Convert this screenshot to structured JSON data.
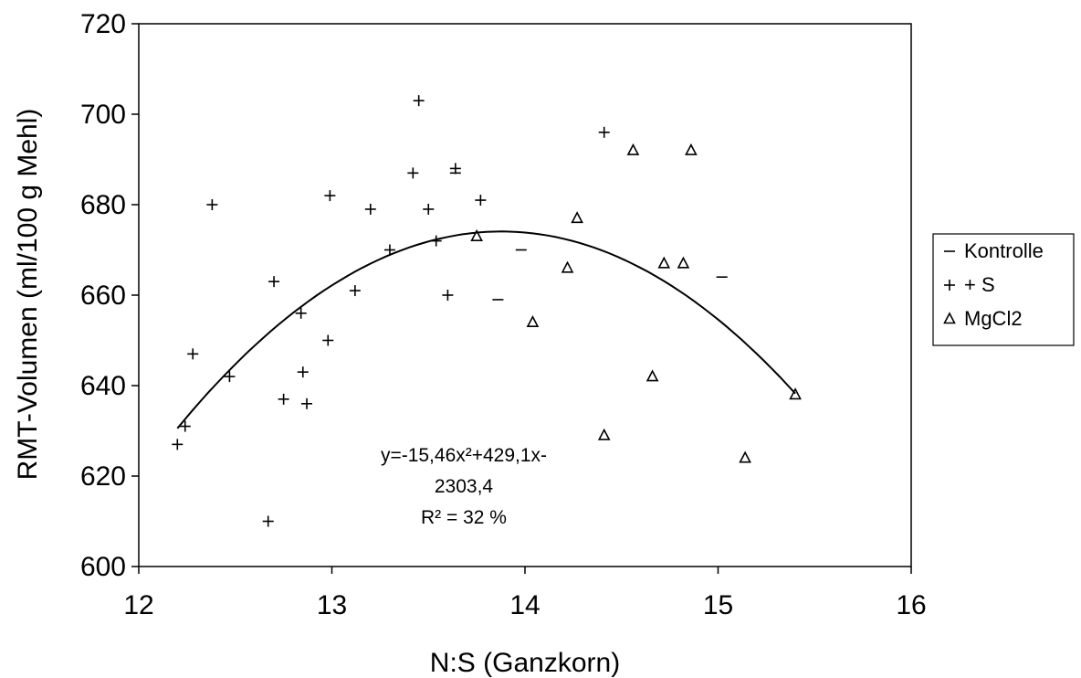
{
  "chart_data": {
    "type": "scatter",
    "title": "",
    "xlabel": "N:S (Ganzkorn)",
    "ylabel": "RMT-Volumen (ml/100 g Mehl)",
    "xlim": [
      12,
      16
    ],
    "ylim": [
      600,
      720
    ],
    "x_ticks": [
      "12",
      "13",
      "14",
      "15",
      "16"
    ],
    "y_ticks": [
      "600",
      "620",
      "640",
      "660",
      "680",
      "700",
      "720"
    ],
    "grid": false,
    "legend_position": "right",
    "series": [
      {
        "name": "Kontrolle",
        "marker": "dash",
        "points": [
          [
            13.64,
            687
          ],
          [
            13.98,
            670
          ],
          [
            13.86,
            659
          ],
          [
            15.02,
            664
          ]
        ]
      },
      {
        "name": "+ S",
        "marker": "plus",
        "points": [
          [
            12.2,
            627
          ],
          [
            12.24,
            631
          ],
          [
            12.28,
            647
          ],
          [
            12.38,
            680
          ],
          [
            12.47,
            642
          ],
          [
            12.67,
            610
          ],
          [
            12.7,
            663
          ],
          [
            12.75,
            637
          ],
          [
            12.84,
            656
          ],
          [
            12.85,
            643
          ],
          [
            12.87,
            636
          ],
          [
            12.98,
            650
          ],
          [
            12.99,
            682
          ],
          [
            13.12,
            661
          ],
          [
            13.2,
            679
          ],
          [
            13.3,
            670
          ],
          [
            13.42,
            687
          ],
          [
            13.45,
            703
          ],
          [
            13.5,
            679
          ],
          [
            13.54,
            672
          ],
          [
            13.6,
            660
          ],
          [
            13.64,
            688
          ],
          [
            13.77,
            681
          ],
          [
            14.41,
            696
          ]
        ]
      },
      {
        "name": "MgCl2",
        "marker": "triangle",
        "points": [
          [
            13.75,
            673
          ],
          [
            14.04,
            654
          ],
          [
            14.22,
            666
          ],
          [
            14.27,
            677
          ],
          [
            14.41,
            629
          ],
          [
            14.56,
            692
          ],
          [
            14.66,
            642
          ],
          [
            14.72,
            667
          ],
          [
            14.82,
            667
          ],
          [
            14.86,
            692
          ],
          [
            15.14,
            624
          ],
          [
            15.4,
            638
          ]
        ]
      }
    ],
    "trendline": {
      "type": "polynomial",
      "coefficients": [
        -15.46,
        429.1,
        -2303.4
      ],
      "x_range": [
        12.2,
        15.4
      ]
    },
    "annotation": {
      "lines": [
        "y=-15,46x²+429,1x-",
        "2303,4",
        "R² = 32 %"
      ]
    }
  }
}
